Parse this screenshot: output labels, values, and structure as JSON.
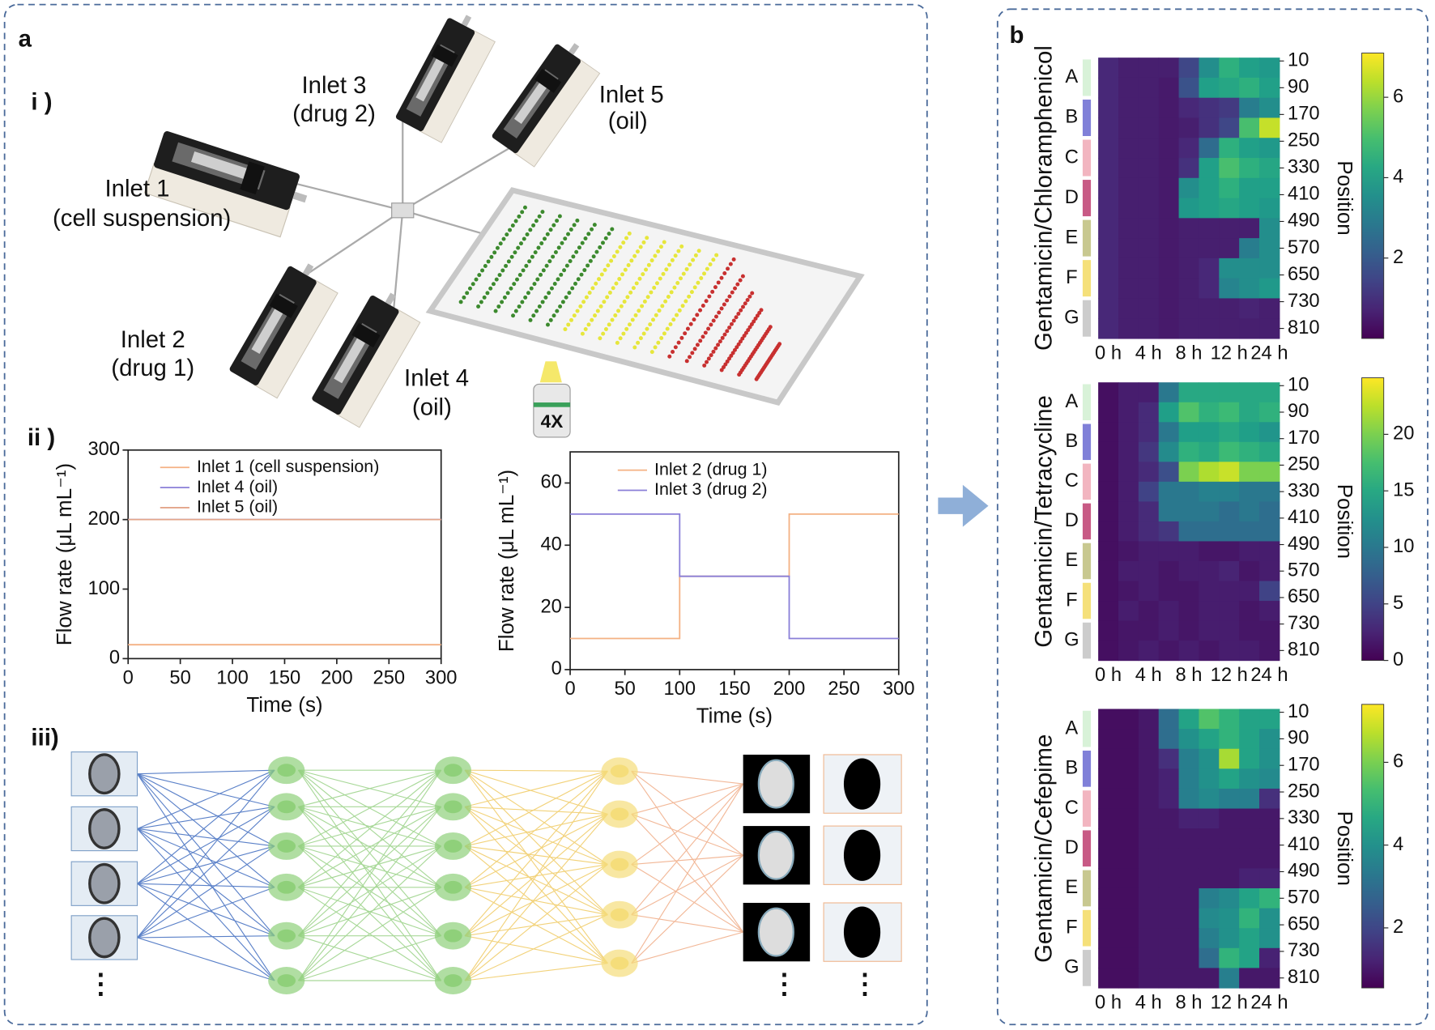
{
  "panels": {
    "a": "a",
    "b": "b",
    "i": "i )",
    "ii": "ii )",
    "iii": "iii)"
  },
  "inlets": [
    {
      "name": "Inlet 1",
      "fluid": "(cell suspension)"
    },
    {
      "name": "Inlet 2",
      "fluid": "(drug 1)"
    },
    {
      "name": "Inlet 3",
      "fluid": "(drug 2)"
    },
    {
      "name": "Inlet 4",
      "fluid": "(oil)"
    },
    {
      "name": "Inlet 5",
      "fluid": "(oil)"
    }
  ],
  "objective": "4X",
  "ellipsis": [
    "⋮",
    "⋮",
    "⋮"
  ],
  "chart_data": [
    {
      "type": "line",
      "xlabel": "Time (s)",
      "ylabel": "Flow rate (μL mL⁻¹)",
      "x": [
        0,
        300
      ],
      "xlim": [
        0,
        300
      ],
      "xticks": [
        0,
        50,
        100,
        150,
        200,
        250,
        300
      ],
      "ylim": [
        0,
        300
      ],
      "yticks": [
        0,
        100,
        200,
        300
      ],
      "series": [
        {
          "name": "Inlet 1 (cell suspension)",
          "color": "#f4b183",
          "values": [
            20,
            20
          ]
        },
        {
          "name": "Inlet 4 (oil)",
          "color": "#8a7fd8",
          "values": [
            200,
            200
          ]
        },
        {
          "name": "Inlet 5 (oil)",
          "color": "#e3a58a",
          "values": [
            200,
            200
          ]
        }
      ]
    },
    {
      "type": "line",
      "xlabel": "Time (s)",
      "ylabel": "Flow rate (μL mL⁻¹)",
      "x": [
        0,
        100,
        100,
        200,
        200,
        300
      ],
      "xlim": [
        0,
        300
      ],
      "xticks": [
        0,
        50,
        100,
        150,
        200,
        250,
        300
      ],
      "ylim": [
        0,
        70
      ],
      "yticks": [
        0,
        20,
        40,
        60
      ],
      "series": [
        {
          "name": "Inlet 2 (drug 1)",
          "color": "#f4b183",
          "values": [
            10,
            10,
            30,
            30,
            50,
            50
          ]
        },
        {
          "name": "Inlet 3 (drug 2)",
          "color": "#8a7fd8",
          "values": [
            50,
            50,
            30,
            30,
            10,
            10
          ]
        }
      ]
    },
    {
      "type": "heatmap",
      "ylabel": "Gentamicin/Chloramphenicol",
      "y2label": "Position",
      "categories": [
        "0 h",
        null,
        "4 h",
        null,
        "8 h",
        null,
        "12 h",
        null,
        "24 h"
      ],
      "ylim": [
        0,
        840
      ],
      "yticks": [
        10,
        90,
        170,
        250,
        330,
        410,
        490,
        570,
        650,
        730,
        810
      ],
      "groups": {
        "labels": [
          "A",
          "B",
          "C",
          "D",
          "E",
          "F",
          "G"
        ],
        "colors": [
          "#d8f2d8",
          "#8080d8",
          "#f2b5c0",
          "#c85a85",
          "#c8c890",
          "#f5e07a",
          "#cccccc"
        ]
      },
      "colorscale": "viridis",
      "zlim": [
        0,
        7.1
      ],
      "zticks": [
        2,
        4,
        6
      ],
      "z": [
        [
          0.8,
          0.6,
          0.6,
          0.6,
          1.5,
          3.5,
          4.5,
          4,
          3.8
        ],
        [
          0.8,
          0.6,
          0.6,
          0.5,
          1.8,
          4,
          4.2,
          4.5,
          4
        ],
        [
          0.8,
          0.6,
          0.6,
          0.5,
          0.8,
          1,
          1.2,
          3,
          3.5
        ],
        [
          0.8,
          0.6,
          0.6,
          0.5,
          0.6,
          1,
          1.5,
          5,
          6.5
        ],
        [
          0.8,
          0.6,
          0.6,
          0.5,
          0.8,
          2.5,
          4.5,
          4,
          3.8
        ],
        [
          0.8,
          0.6,
          0.6,
          0.5,
          1,
          4,
          5,
          4.5,
          4.2
        ],
        [
          0.8,
          0.6,
          0.6,
          0.5,
          3.5,
          4,
          4.5,
          4,
          4
        ],
        [
          0.8,
          0.6,
          0.6,
          0.5,
          3.8,
          4,
          4.2,
          4,
          3.8
        ],
        [
          0.8,
          0.6,
          0.6,
          0.5,
          0.6,
          0.6,
          0.6,
          0.6,
          3.5
        ],
        [
          0.8,
          0.6,
          0.6,
          0.5,
          0.6,
          0.6,
          0.6,
          3,
          3.5
        ],
        [
          0.8,
          0.6,
          0.6,
          0.5,
          0.6,
          0.8,
          3.5,
          3.5,
          3.5
        ],
        [
          0.8,
          0.6,
          0.6,
          0.5,
          0.6,
          0.8,
          3.2,
          3.5,
          3.8
        ],
        [
          0.8,
          0.6,
          0.6,
          0.5,
          0.6,
          0.6,
          0.6,
          0.7,
          0.6
        ],
        [
          0.8,
          0.6,
          0.6,
          0.5,
          0.6,
          0.6,
          0.6,
          0.6,
          0.6
        ]
      ]
    },
    {
      "type": "heatmap",
      "ylabel": "Gentamicin/Tetracycline",
      "y2label": "Position",
      "categories": [
        "0 h",
        null,
        "4 h",
        null,
        "8 h",
        null,
        "12 h",
        null,
        "24 h"
      ],
      "ylim": [
        0,
        840
      ],
      "yticks": [
        10,
        90,
        170,
        250,
        330,
        410,
        490,
        570,
        650,
        730,
        810
      ],
      "groups": {
        "labels": [
          "A",
          "B",
          "C",
          "D",
          "E",
          "F",
          "G"
        ],
        "colors": [
          "#d8f2d8",
          "#8080d8",
          "#f2b5c0",
          "#c85a85",
          "#c8c890",
          "#f5e07a",
          "#cccccc"
        ]
      },
      "colorscale": "viridis",
      "zlim": [
        0,
        25
      ],
      "zticks": [
        0,
        5,
        10,
        15,
        20
      ],
      "z": [
        [
          1,
          2,
          2,
          10,
          15,
          15,
          15,
          15,
          15
        ],
        [
          1,
          2,
          3,
          14,
          18,
          16,
          17,
          15,
          16
        ],
        [
          1,
          2,
          3,
          10,
          14,
          14,
          15,
          14,
          13
        ],
        [
          1,
          2,
          4,
          12,
          16,
          15,
          17,
          16,
          15
        ],
        [
          1,
          2,
          3,
          6,
          20,
          22,
          23,
          20,
          20
        ],
        [
          1,
          2,
          5,
          10,
          10,
          11,
          11,
          10,
          10
        ],
        [
          1,
          2,
          3,
          10,
          10,
          10,
          9,
          10,
          9
        ],
        [
          1,
          2,
          3,
          4,
          9,
          9,
          9,
          9,
          9
        ],
        [
          1,
          1.5,
          2,
          2,
          2,
          1.5,
          1.5,
          2,
          2
        ],
        [
          1,
          2,
          2,
          1.5,
          2,
          2,
          2.5,
          1.5,
          2
        ],
        [
          1,
          1.5,
          2,
          1.5,
          1.5,
          2,
          2,
          2,
          5
        ],
        [
          1,
          2,
          1.5,
          2,
          1.5,
          2,
          2,
          1.5,
          2
        ],
        [
          1,
          1.5,
          1.5,
          2,
          1.5,
          2,
          2,
          1.5,
          1.5
        ],
        [
          1,
          1.5,
          2,
          1.5,
          2,
          1.5,
          2,
          2,
          1.5
        ]
      ]
    },
    {
      "type": "heatmap",
      "ylabel": "Gentamicin/Cefepime",
      "y2label": "Position",
      "categories": [
        "0 h",
        null,
        "4 h",
        null,
        "8 h",
        null,
        "12 h",
        null,
        "24 h"
      ],
      "ylim": [
        0,
        840
      ],
      "yticks": [
        10,
        90,
        170,
        250,
        330,
        410,
        490,
        570,
        650,
        730,
        810
      ],
      "groups": {
        "labels": [
          "A",
          "B",
          "C",
          "D",
          "E",
          "F",
          "G"
        ],
        "colors": [
          "#d8f2d8",
          "#8080d8",
          "#f2b5c0",
          "#c85a85",
          "#c8c890",
          "#f5e07a",
          "#cccccc"
        ]
      },
      "colorscale": "viridis",
      "zlim": [
        0.55,
        7.4
      ],
      "zticks": [
        2,
        4,
        6
      ],
      "z": [
        [
          0.8,
          0.8,
          1,
          3,
          4.5,
          5.5,
          5,
          4.5,
          4.5
        ],
        [
          0.8,
          0.8,
          1,
          3,
          4,
          4.5,
          5,
          4.5,
          4
        ],
        [
          0.8,
          0.8,
          1,
          1.5,
          3.5,
          4,
          6.5,
          4.5,
          4
        ],
        [
          0.8,
          0.8,
          1,
          1.2,
          3.5,
          4,
          4.5,
          4,
          3.8
        ],
        [
          0.8,
          0.8,
          1,
          1.2,
          3.5,
          3.8,
          3.5,
          3.5,
          1.5
        ],
        [
          0.8,
          0.8,
          1,
          1,
          1.2,
          1.2,
          1,
          1,
          1
        ],
        [
          0.8,
          0.8,
          1,
          1,
          1,
          1,
          1,
          1,
          1
        ],
        [
          0.8,
          0.8,
          1,
          1,
          1,
          1,
          1,
          1,
          1
        ],
        [
          0.8,
          0.8,
          1,
          1,
          1,
          1,
          1,
          1.2,
          1.2
        ],
        [
          0.8,
          0.8,
          1,
          1,
          1,
          3.5,
          3.8,
          4.5,
          5
        ],
        [
          0.8,
          0.8,
          1,
          1,
          1,
          3.8,
          4,
          5,
          4
        ],
        [
          0.8,
          0.8,
          1,
          1,
          1,
          3.5,
          4,
          4.5,
          4
        ],
        [
          0.8,
          0.8,
          1,
          1,
          1,
          3,
          5,
          4.5,
          1.2
        ],
        [
          0.8,
          0.8,
          1,
          1,
          1,
          1,
          3.5,
          1,
          1
        ]
      ]
    }
  ]
}
